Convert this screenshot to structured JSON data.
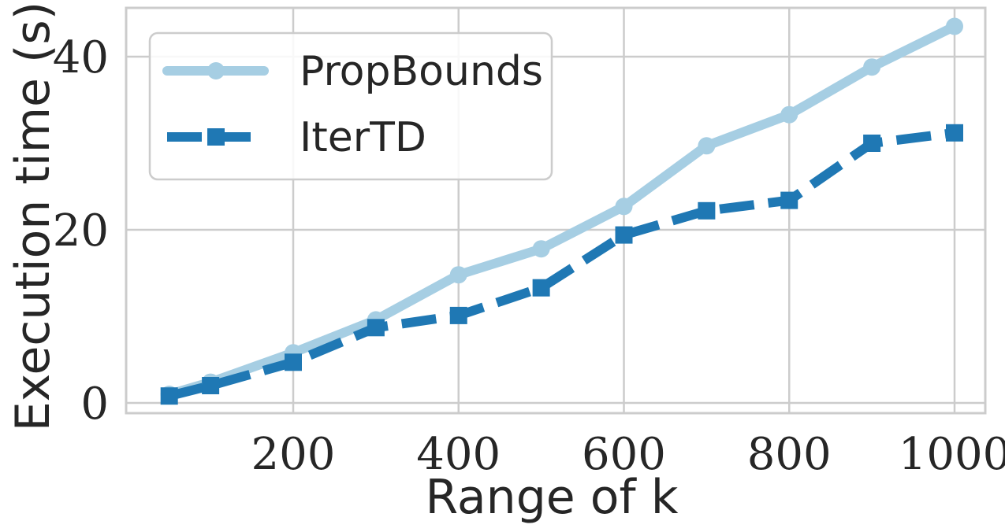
{
  "chart_data": {
    "type": "line",
    "xlabel": "Range of k",
    "ylabel": "Execution time (s)",
    "xlim": [
      0,
      1000
    ],
    "ylim": [
      -1,
      46
    ],
    "xticks": [
      200,
      400,
      600,
      800,
      1000
    ],
    "yticks": [
      0,
      20,
      40
    ],
    "grid": true,
    "legend_position": "top-left",
    "series": [
      {
        "name": "PropBounds",
        "color": "#a6cee3",
        "line_style": "solid",
        "marker": "circle",
        "x": [
          50,
          100,
          200,
          300,
          400,
          500,
          600,
          700,
          800,
          900,
          1000
        ],
        "y": [
          1.0,
          2.4,
          5.8,
          9.6,
          14.8,
          17.8,
          22.7,
          29.7,
          33.3,
          38.8,
          43.5
        ]
      },
      {
        "name": "IterTD",
        "color": "#1f78b4",
        "line_style": "dashed",
        "marker": "square",
        "x": [
          50,
          100,
          200,
          300,
          400,
          500,
          600,
          700,
          800,
          900,
          1000
        ],
        "y": [
          0.8,
          2.0,
          4.7,
          8.7,
          10.1,
          13.3,
          19.4,
          22.2,
          23.4,
          30.0,
          31.2
        ]
      }
    ]
  }
}
